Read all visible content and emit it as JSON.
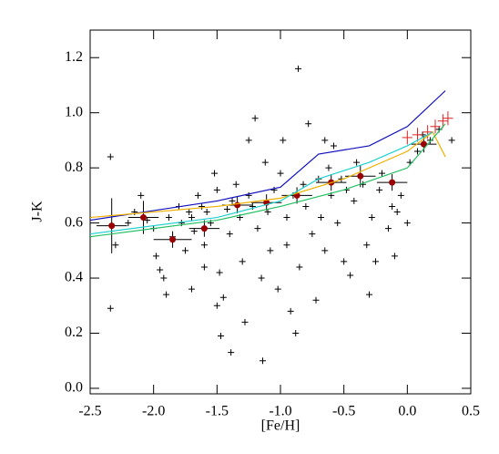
{
  "chart_data": {
    "type": "scatter",
    "xlabel": "[Fe/H]",
    "ylabel": "J-K",
    "xlim": [
      -2.5,
      0.5
    ],
    "ylim": [
      -0.02,
      1.3
    ],
    "xticks": [
      -2.5,
      {
        "value": -2.0,
        "label": "-2.0"
      },
      -1.5,
      {
        "value": -1.0,
        "label": "-1.0"
      },
      -0.5,
      {
        "value": 0.0,
        "label": "0.0"
      },
      0.5
    ],
    "yticks": [
      {
        "value": 0.0,
        "label": "0.0"
      },
      0.2,
      0.4,
      0.6,
      0.8,
      {
        "value": 1.0,
        "label": "1.0"
      },
      1.2
    ],
    "series": [
      {
        "style": "plus",
        "color": "#000000",
        "x": [
          -2.34,
          -2.34,
          -2.3,
          -2.2,
          -2.15,
          -2.1,
          -2.05,
          -2.0,
          -1.98,
          -1.95,
          -1.92,
          -1.9,
          -1.88,
          -1.85,
          -1.8,
          -1.78,
          -1.75,
          -1.72,
          -1.7,
          -1.68,
          -1.65,
          -1.62,
          -1.6,
          -1.58,
          -1.55,
          -1.52,
          -1.5,
          -1.48,
          -1.47,
          -1.45,
          -1.42,
          -1.4,
          -1.39,
          -1.38,
          -1.35,
          -1.32,
          -1.3,
          -1.28,
          -1.25,
          -1.22,
          -1.2,
          -1.18,
          -1.15,
          -1.14,
          -1.12,
          -1.1,
          -1.08,
          -1.05,
          -1.02,
          -1.0,
          -0.98,
          -0.95,
          -0.92,
          -0.9,
          -0.88,
          -0.86,
          -0.85,
          -0.82,
          -0.8,
          -0.78,
          -0.75,
          -0.72,
          -0.7,
          -0.68,
          -0.65,
          -0.62,
          -0.6,
          -0.58,
          -0.55,
          -0.52,
          -0.5,
          -0.48,
          -0.45,
          -0.42,
          -0.4,
          -0.35,
          -0.32,
          -0.3,
          -0.28,
          -0.25,
          -0.22,
          -0.2,
          -0.15,
          -0.12,
          -0.1,
          -0.08,
          -0.05,
          0.0,
          0.02,
          0.08,
          0.12,
          0.18,
          0.25,
          0.35,
          -1.6,
          -1.5,
          -0.95,
          -1.25,
          -1.7,
          -0.65
        ],
        "values": [
          0.84,
          0.29,
          0.52,
          0.6,
          0.64,
          0.7,
          0.61,
          0.58,
          0.48,
          0.43,
          0.4,
          0.34,
          0.62,
          0.55,
          0.66,
          0.6,
          0.5,
          0.64,
          0.62,
          0.57,
          0.7,
          0.66,
          0.52,
          0.64,
          0.6,
          0.78,
          0.72,
          0.42,
          0.19,
          0.33,
          0.65,
          0.56,
          0.13,
          0.68,
          0.74,
          0.62,
          0.46,
          0.24,
          0.7,
          0.66,
          0.98,
          0.58,
          0.4,
          0.1,
          0.82,
          0.64,
          0.5,
          0.72,
          0.36,
          0.78,
          0.9,
          0.62,
          0.28,
          0.7,
          0.2,
          1.16,
          0.44,
          0.74,
          0.66,
          0.96,
          0.56,
          0.32,
          0.76,
          0.62,
          0.5,
          0.8,
          0.7,
          0.88,
          0.6,
          0.76,
          0.46,
          0.72,
          0.41,
          0.68,
          0.82,
          0.74,
          0.52,
          0.34,
          0.62,
          0.46,
          0.72,
          0.78,
          0.58,
          0.66,
          0.48,
          0.64,
          0.7,
          0.6,
          0.82,
          0.86,
          0.92,
          0.9,
          0.94,
          0.9,
          0.44,
          0.3,
          0.52,
          0.9,
          0.36,
          0.9
        ]
      },
      {
        "style": "circle",
        "color": "#9a0000",
        "errcolor": "#000000",
        "x": [
          -2.33,
          -2.08,
          -1.85,
          -1.6,
          -1.34,
          -1.11,
          -0.87,
          -0.6,
          -0.37,
          -0.12,
          0.13
        ],
        "values": [
          0.59,
          0.62,
          0.54,
          0.58,
          0.665,
          0.674,
          0.7,
          0.747,
          0.77,
          0.747,
          0.886
        ],
        "xerr": [
          0.12,
          0.12,
          0.15,
          0.12,
          0.12,
          0.12,
          0.12,
          0.12,
          0.12,
          0.12,
          0.1
        ],
        "yerr": [
          0.1,
          0.06,
          0.03,
          0.03,
          0.03,
          0.03,
          0.03,
          0.03,
          0.04,
          0.03,
          0.03
        ]
      },
      {
        "style": "errorbar",
        "color": "#e02020",
        "x": [
          0.0,
          0.08,
          0.16,
          0.22,
          0.28,
          0.32
        ],
        "values": [
          0.91,
          0.92,
          0.93,
          0.95,
          0.97,
          0.98
        ],
        "xerr": [
          0.04,
          0.04,
          0.04,
          0.04,
          0.04,
          0.04
        ],
        "yerr": [
          0.025,
          0.025,
          0.025,
          0.025,
          0.025,
          0.025
        ]
      },
      {
        "style": "line",
        "color": "#1010c0",
        "x": [
          -2.5,
          -1.5,
          -1.0,
          -0.7,
          -0.3,
          0.0,
          0.3
        ],
        "values": [
          0.61,
          0.68,
          0.73,
          0.85,
          0.88,
          0.95,
          1.08
        ]
      },
      {
        "style": "line",
        "color": "#f0b000",
        "x": [
          -2.5,
          -1.5,
          -1.0,
          -0.5,
          0.0,
          0.2,
          0.3
        ],
        "values": [
          0.62,
          0.66,
          0.69,
          0.76,
          0.86,
          0.93,
          0.84
        ]
      },
      {
        "style": "line",
        "color": "#20d0d0",
        "x": [
          -2.5,
          -1.5,
          -1.0,
          -0.7,
          -0.3,
          0.0,
          0.2
        ],
        "values": [
          0.56,
          0.62,
          0.68,
          0.76,
          0.82,
          0.88,
          0.93
        ]
      },
      {
        "style": "line",
        "color": "#20c060",
        "x": [
          -2.5,
          -1.5,
          -1.0,
          -0.5,
          0.0,
          0.3
        ],
        "values": [
          0.55,
          0.61,
          0.66,
          0.72,
          0.8,
          0.96
        ]
      }
    ]
  }
}
